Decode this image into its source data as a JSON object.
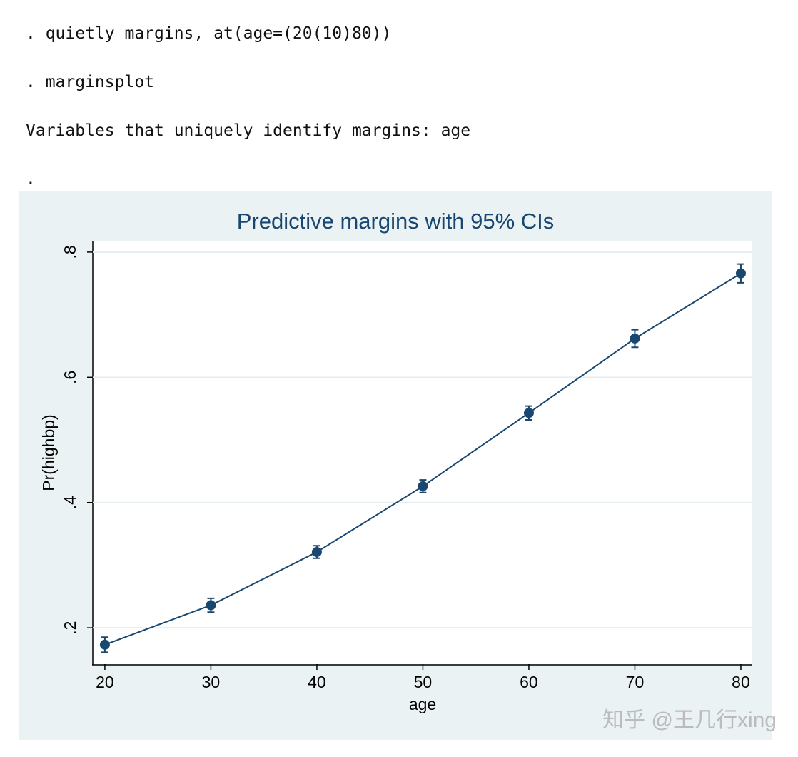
{
  "console": {
    "lines": [
      ". quietly margins, at(age=(20(10)80))",
      ". marginsplot",
      "Variables that uniquely identify margins: age",
      "."
    ]
  },
  "chart_data": {
    "type": "line",
    "title": "Predictive margins with 95% CIs",
    "x_label": "age",
    "y_label": "Pr(highbp)",
    "x": [
      20,
      30,
      40,
      50,
      60,
      70,
      80
    ],
    "series": [
      {
        "color": "#1a476f",
        "values": [
          0.173,
          0.236,
          0.321,
          0.426,
          0.543,
          0.662,
          0.766
        ],
        "errors": [
          0.012,
          0.011,
          0.01,
          0.01,
          0.011,
          0.014,
          0.015
        ]
      }
    ],
    "xlim": [
      18.86,
      81.08
    ],
    "ylim": [
      0.142,
      0.817
    ],
    "xticks": [
      20,
      30,
      40,
      50,
      60,
      70,
      80
    ],
    "yticks": [
      {
        "value": 0.2,
        "label": ".2"
      },
      {
        "value": 0.4,
        "label": ".4"
      },
      {
        "value": 0.6,
        "label": ".6"
      },
      {
        "value": 0.8,
        "label": ".8"
      }
    ],
    "grid": true
  },
  "watermark": "知乎 @王几行xing"
}
